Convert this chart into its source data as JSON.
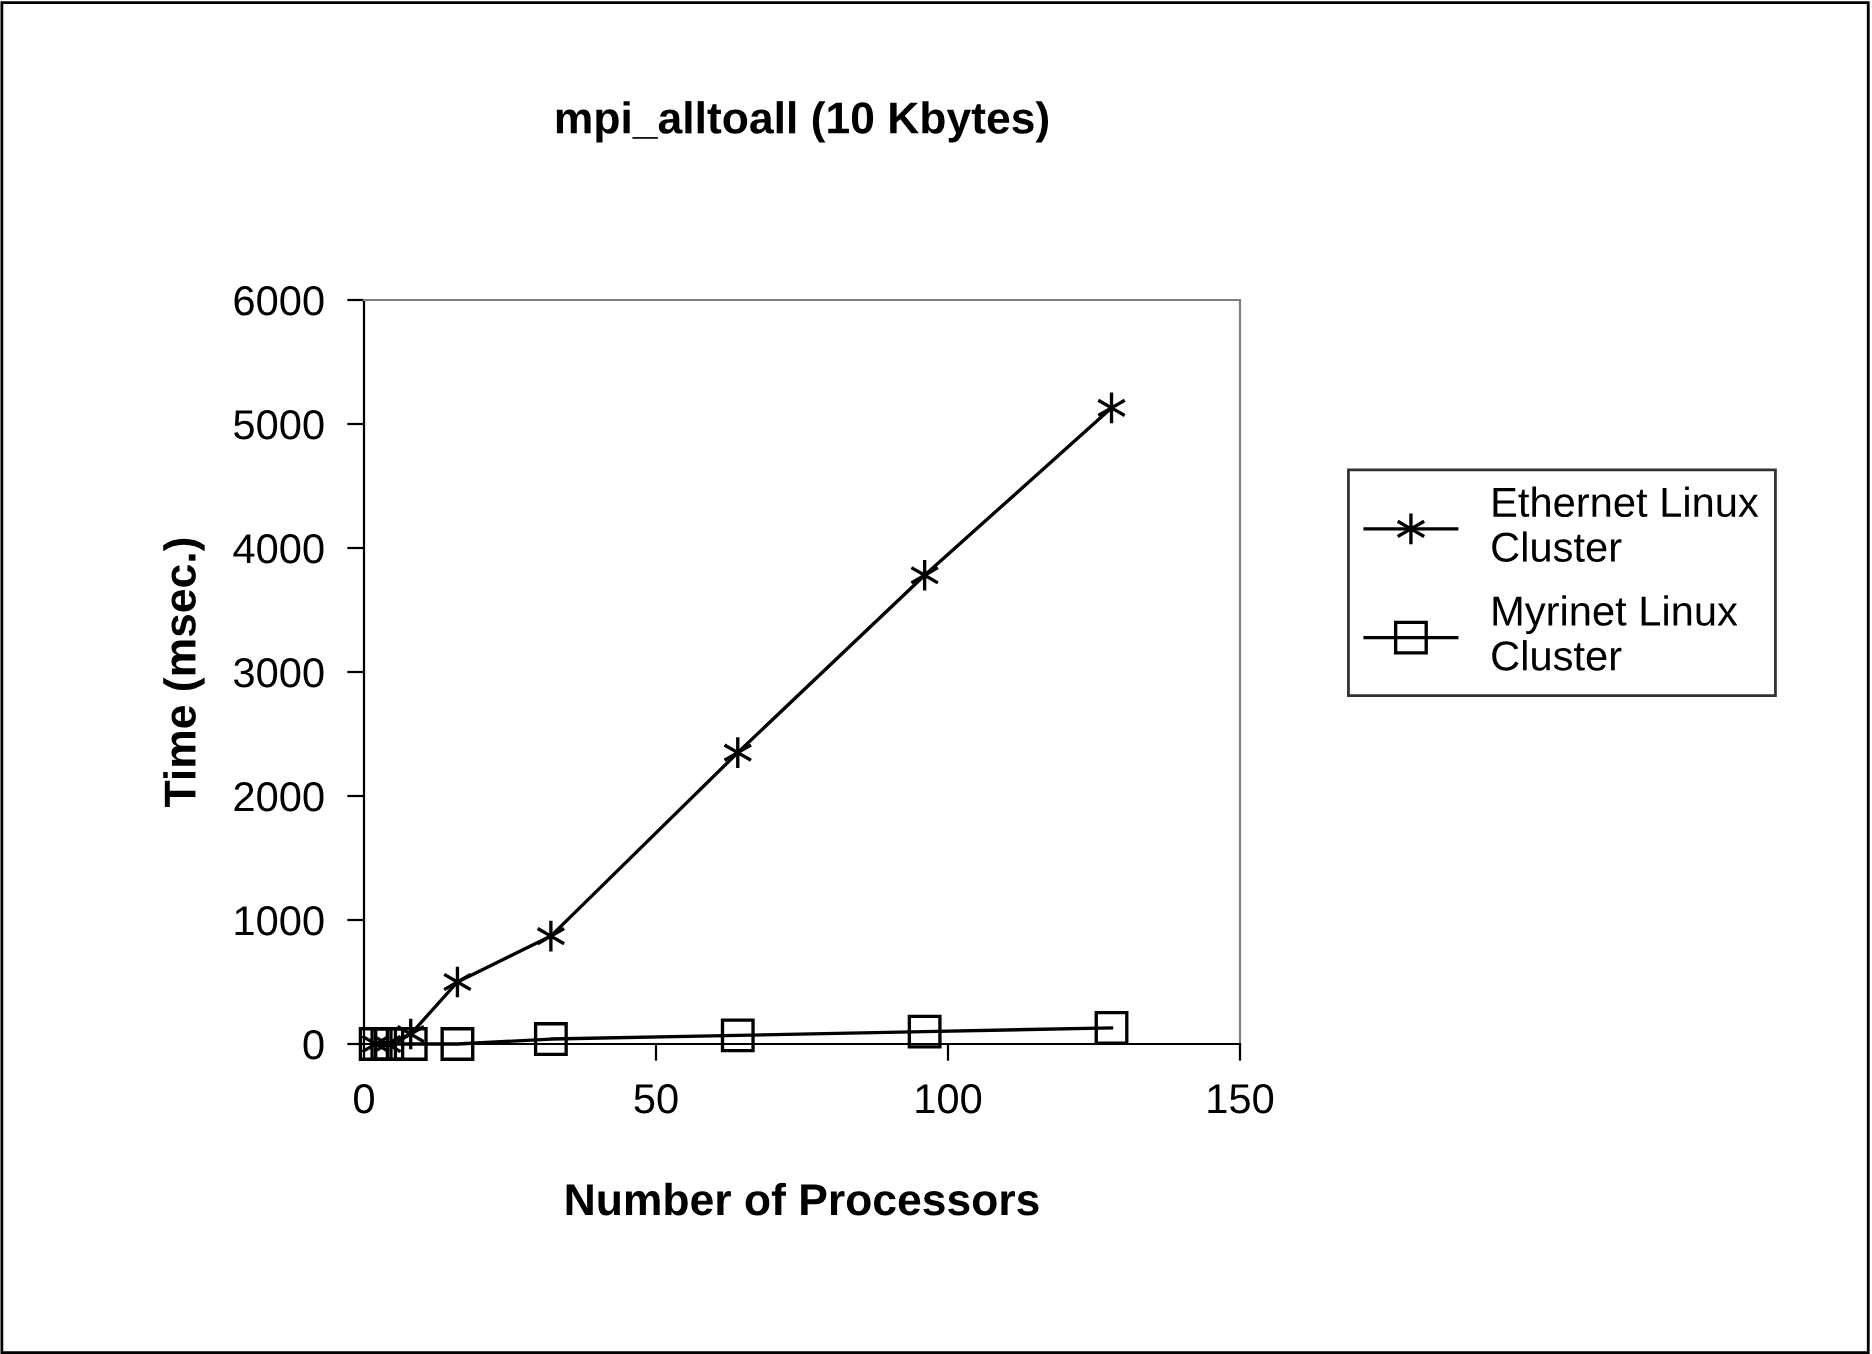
{
  "chart_data": {
    "type": "line",
    "title": "mpi_alltoall (10 Kbytes)",
    "xlabel": "Number of Processors",
    "ylabel": "Time (msec.)",
    "x": [
      2,
      4,
      8,
      16,
      32,
      64,
      96,
      128
    ],
    "series": [
      {
        "name": "Ethernet Linux Cluster",
        "color": "#000000",
        "marker": "cross",
        "values": [
          0,
          0,
          80,
          500,
          870,
          2350,
          3780,
          5130
        ]
      },
      {
        "name": "Myrinet Linux Cluster",
        "color": "#000000",
        "marker": "square",
        "values": [
          0,
          0,
          0,
          0,
          40,
          70,
          100,
          130
        ]
      }
    ],
    "xlim": [
      0,
      150
    ],
    "xticks": [
      0,
      50,
      100,
      150
    ],
    "ylim": [
      0,
      6000
    ],
    "yticks": [
      0,
      1000,
      2000,
      3000,
      4000,
      5000,
      6000
    ],
    "grid": false,
    "legend": "right",
    "line_style": "solid"
  }
}
